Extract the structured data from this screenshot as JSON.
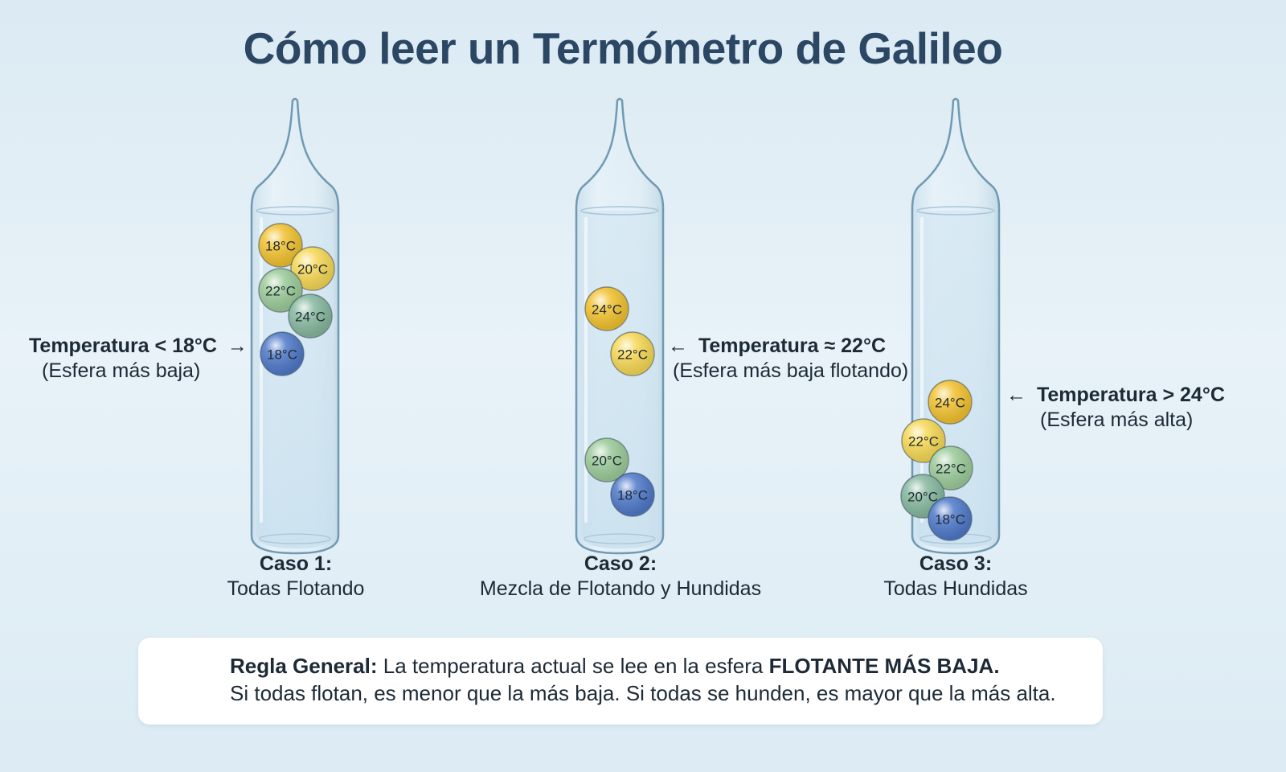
{
  "title": "Cómo leer un Termómetro de Galileo",
  "tubes": [
    {
      "case": "Caso 1:",
      "description": "Todas Flotando",
      "annotation": {
        "main": "Temperatura < 18°C",
        "arrow": "→",
        "sub": "(Esfera más baja)",
        "side": "left"
      },
      "balls": [
        {
          "label": "18°C",
          "color": "#f2c230"
        },
        {
          "label": "20°C",
          "color": "#f6d855"
        },
        {
          "label": "22°C",
          "color": "#9ccb9a"
        },
        {
          "label": "24°C",
          "color": "#86b89f"
        },
        {
          "label": "18°C",
          "color": "#4f79c9"
        }
      ]
    },
    {
      "case": "Caso 2:",
      "description": "Mezcla de Flotando y Hundidas",
      "annotation": {
        "main": "Temperatura ≈ 22°C",
        "arrow": "←",
        "sub": "(Esfera más baja flotando)",
        "side": "right"
      },
      "balls": [
        {
          "label": "24°C",
          "color": "#f2c230"
        },
        {
          "label": "22°C",
          "color": "#f6d855"
        },
        {
          "label": "20°C",
          "color": "#9ccb9a"
        },
        {
          "label": "18°C",
          "color": "#4f79c9"
        }
      ]
    },
    {
      "case": "Caso 3:",
      "description": "Todas Hundidas",
      "annotation": {
        "main": "Temperatura > 24°C",
        "arrow": "←",
        "sub": "(Esfera más alta)",
        "side": "right"
      },
      "balls": [
        {
          "label": "24°C",
          "color": "#f2c230"
        },
        {
          "label": "22°C",
          "color": "#f6d855"
        },
        {
          "label": "22°C",
          "color": "#9ccb9a"
        },
        {
          "label": "20°C",
          "color": "#86b89f"
        },
        {
          "label": "18°C",
          "color": "#4f79c9"
        }
      ]
    }
  ],
  "rule": {
    "lead": "Regla General:",
    "text": " La temperatura actual se lee en la esfera ",
    "emphasis": "FLOTANTE MÁS BAJA.",
    "line2": "Si todas flotan, es menor que la más baja. Si todas se hunden, es mayor que la más alta."
  }
}
